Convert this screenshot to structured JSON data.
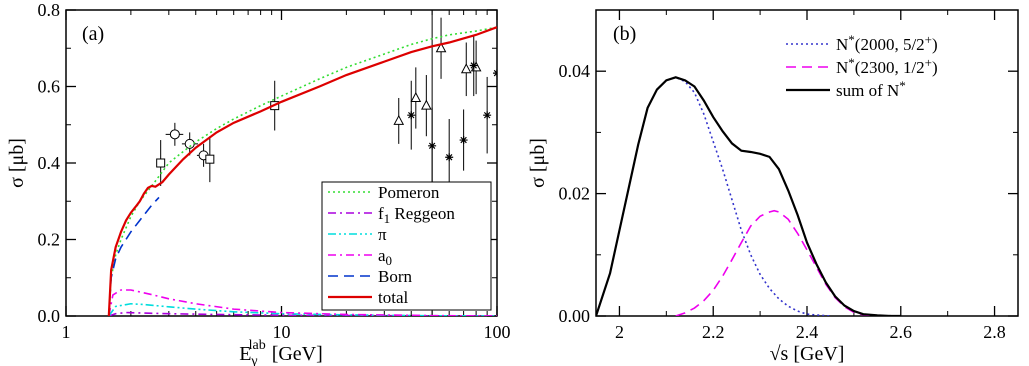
{
  "chart_data": [
    {
      "type": "line",
      "panel_label": "(a)",
      "xlabel": "E",
      "xlabel_sub": "γ",
      "xlabel_sup": "lab",
      "xlabel_unit": "[GeV]",
      "ylabel": "σ [μb]",
      "xscale": "log",
      "xlim": [
        1,
        100
      ],
      "ylim": [
        0,
        0.8
      ],
      "xticks": [
        1,
        10,
        100
      ],
      "xtick_labels": [
        "1",
        "10",
        "100"
      ],
      "yticks": [
        0,
        0.2,
        0.4,
        0.6,
        0.8
      ],
      "ytick_labels": [
        "0.0",
        "0.2",
        "0.4",
        "0.6",
        "0.8"
      ],
      "legend_position": "bottom-right",
      "vline_x": 50,
      "series": [
        {
          "name": "Pomeron",
          "color": "#33dd33",
          "dash": "dot",
          "x": [
            1.58,
            1.62,
            1.7,
            1.8,
            2.0,
            2.2,
            2.5,
            3.0,
            3.5,
            4.0,
            5.0,
            6.0,
            8.0,
            10.0,
            15.0,
            20.0,
            30.0,
            40.0,
            50.0,
            60.0,
            80.0,
            100.0
          ],
          "y": [
            0.0,
            0.1,
            0.16,
            0.2,
            0.26,
            0.3,
            0.34,
            0.4,
            0.43,
            0.455,
            0.49,
            0.515,
            0.55,
            0.575,
            0.62,
            0.65,
            0.685,
            0.71,
            0.725,
            0.735,
            0.745,
            0.755
          ]
        },
        {
          "name": "f₁ Reggeon",
          "label_main": "f",
          "label_sub": "1",
          "label_rest": " Reggeon",
          "color": "#aa00dd",
          "dash": "dashdot",
          "x": [
            1.58,
            1.7,
            1.9,
            2.2,
            3.0,
            5.0,
            10.0,
            30.0,
            100.0
          ],
          "y": [
            0.0,
            0.006,
            0.009,
            0.008,
            0.006,
            0.004,
            0.002,
            0.001,
            0.0
          ]
        },
        {
          "name": "π",
          "color": "#00dddd",
          "dash": "dashdotdot",
          "x": [
            1.58,
            1.7,
            2.0,
            2.3,
            3.0,
            4.0,
            6.0,
            10.0,
            20.0,
            40.0,
            100.0
          ],
          "y": [
            0.0,
            0.025,
            0.032,
            0.03,
            0.024,
            0.018,
            0.011,
            0.006,
            0.003,
            0.001,
            0.0
          ]
        },
        {
          "name": "a₀",
          "label_main": "a",
          "label_sub": "0",
          "label_rest": "",
          "color": "#ee00ee",
          "dash": "dashdot",
          "x": [
            1.58,
            1.65,
            1.8,
            2.0,
            2.5,
            3.0,
            4.0,
            6.0,
            10.0,
            20.0,
            50.0,
            100.0
          ],
          "y": [
            0.0,
            0.055,
            0.068,
            0.068,
            0.056,
            0.045,
            0.032,
            0.018,
            0.009,
            0.004,
            0.001,
            0.0
          ]
        },
        {
          "name": "Born",
          "color": "#0033cc",
          "dash": "dash",
          "x": [
            1.58,
            1.62,
            1.7,
            1.8,
            2.0,
            2.2,
            2.5,
            2.7
          ],
          "y": [
            0.0,
            0.1,
            0.15,
            0.18,
            0.22,
            0.25,
            0.29,
            0.31
          ]
        },
        {
          "name": "total",
          "color": "#dd0000",
          "dash": "solid",
          "x": [
            1.58,
            1.62,
            1.7,
            1.8,
            1.9,
            2.0,
            2.1,
            2.2,
            2.3,
            2.4,
            2.5,
            2.6,
            2.8,
            3.0,
            3.5,
            4.0,
            5.0,
            6.0,
            8.0,
            10.0,
            15.0,
            20.0,
            30.0,
            40.0,
            50.0,
            60.0,
            80.0,
            100.0
          ],
          "y": [
            0.0,
            0.12,
            0.18,
            0.22,
            0.25,
            0.27,
            0.285,
            0.3,
            0.32,
            0.335,
            0.34,
            0.338,
            0.35,
            0.37,
            0.41,
            0.44,
            0.48,
            0.505,
            0.535,
            0.56,
            0.6,
            0.63,
            0.665,
            0.69,
            0.705,
            0.715,
            0.735,
            0.755
          ]
        }
      ],
      "experimental_data": [
        {
          "marker": "circle",
          "points": [
            {
              "x": 3.2,
              "y": 0.475,
              "xerr": [
                2.9,
                3.5
              ],
              "yerr": 0.03
            },
            {
              "x": 3.75,
              "y": 0.45,
              "xerr": [
                3.45,
                4.1
              ],
              "yerr": 0.03
            },
            {
              "x": 4.35,
              "y": 0.42,
              "xerr": [
                4.05,
                4.65
              ],
              "yerr": 0.03
            }
          ]
        },
        {
          "marker": "square",
          "points": [
            {
              "x": 2.75,
              "y": 0.4,
              "xerr": [
                2.75,
                2.75
              ],
              "yerr": 0.06
            },
            {
              "x": 4.65,
              "y": 0.41,
              "xerr": [
                4.65,
                4.65
              ],
              "yerr": 0.06
            },
            {
              "x": 9.3,
              "y": 0.55,
              "xerr": [
                9.3,
                9.3
              ],
              "yerr": 0.065
            }
          ]
        },
        {
          "marker": "triangle",
          "points": [
            {
              "x": 35,
              "y": 0.51,
              "xerr": [
                35,
                35
              ],
              "yerr": 0.06
            },
            {
              "x": 42,
              "y": 0.57,
              "xerr": [
                42,
                42
              ],
              "yerr": 0.08
            },
            {
              "x": 47,
              "y": 0.55,
              "xerr": [
                47,
                47
              ],
              "yerr": 0.08
            },
            {
              "x": 55,
              "y": 0.7,
              "xerr": [
                55,
                55
              ],
              "yerr": 0.08
            },
            {
              "x": 72,
              "y": 0.645,
              "xerr": [
                72,
                72
              ],
              "yerr": 0.07
            },
            {
              "x": 80,
              "y": 0.65,
              "xerr": [
                80,
                80
              ],
              "yerr": 0.07
            }
          ]
        },
        {
          "marker": "star",
          "points": [
            {
              "x": 40,
              "y": 0.525,
              "xerr": [
                40,
                40
              ],
              "yerr": 0.09
            },
            {
              "x": 50,
              "y": 0.445,
              "xerr": [
                50,
                50
              ],
              "yerr": 0.1
            },
            {
              "x": 60,
              "y": 0.415,
              "xerr": [
                60,
                60
              ],
              "yerr": 0.1
            },
            {
              "x": 70,
              "y": 0.46,
              "xerr": [
                70,
                70
              ],
              "yerr": 0.08
            },
            {
              "x": 78,
              "y": 0.655,
              "xerr": [
                78,
                78
              ],
              "yerr": 0.08
            },
            {
              "x": 90,
              "y": 0.525,
              "xerr": [
                90,
                90
              ],
              "yerr": 0.1
            },
            {
              "x": 100,
              "y": 0.635,
              "xerr": [
                100,
                100
              ],
              "yerr": 0.08
            }
          ]
        }
      ]
    },
    {
      "type": "line",
      "panel_label": "(b)",
      "xlabel": "√s [GeV]",
      "ylabel": "σ [μb]",
      "xlim": [
        1.95,
        2.85
      ],
      "ylim": [
        0,
        0.05
      ],
      "xticks": [
        2.0,
        2.2,
        2.4,
        2.6,
        2.8
      ],
      "xtick_labels": [
        "2",
        "2.2",
        "2.4",
        "2.6",
        "2.8"
      ],
      "yticks": [
        0,
        0.02,
        0.04
      ],
      "ytick_labels": [
        "0.00",
        "0.02",
        "0.04"
      ],
      "legend_position": "top-right",
      "series": [
        {
          "name": "N*(2000, 5/2⁺)",
          "label_main": "N",
          "label_sup": "*",
          "label_rest": "(2000, 5/2",
          "label_sup2": "+",
          "label_end": ")",
          "color": "#3333cc",
          "dash": "dot",
          "x": [
            1.95,
            1.98,
            2.0,
            2.02,
            2.04,
            2.06,
            2.08,
            2.1,
            2.12,
            2.14,
            2.16,
            2.18,
            2.2,
            2.22,
            2.24,
            2.26,
            2.28,
            2.3,
            2.32,
            2.34,
            2.36,
            2.38,
            2.4,
            2.43,
            2.45
          ],
          "y": [
            0.0,
            0.007,
            0.014,
            0.021,
            0.028,
            0.034,
            0.037,
            0.0385,
            0.039,
            0.0383,
            0.0365,
            0.033,
            0.0285,
            0.024,
            0.019,
            0.014,
            0.01,
            0.0068,
            0.0045,
            0.0028,
            0.0016,
            0.0008,
            0.0003,
            0.0001,
            0.0
          ]
        },
        {
          "name": "N*(2300, 1/2⁺)",
          "label_main": "N",
          "label_sup": "*",
          "label_rest": "(2300, 1/2",
          "label_sup2": "+",
          "label_end": ")",
          "color": "#ee00ee",
          "dash": "dash",
          "x": [
            2.12,
            2.14,
            2.16,
            2.18,
            2.2,
            2.22,
            2.24,
            2.26,
            2.28,
            2.3,
            2.32,
            2.33,
            2.34,
            2.36,
            2.38,
            2.4,
            2.42,
            2.44,
            2.46,
            2.48,
            2.5,
            2.52,
            2.55
          ],
          "y": [
            0.0,
            0.0005,
            0.0013,
            0.0025,
            0.0042,
            0.0065,
            0.0092,
            0.012,
            0.0147,
            0.0163,
            0.017,
            0.0172,
            0.017,
            0.0158,
            0.0135,
            0.0108,
            0.008,
            0.0052,
            0.003,
            0.0015,
            0.0006,
            0.0002,
            0.0
          ]
        },
        {
          "name": "sum of N*",
          "label_main": "sum of N",
          "label_sup": "*",
          "color": "#000000",
          "dash": "solid",
          "x": [
            1.95,
            1.98,
            2.0,
            2.02,
            2.04,
            2.06,
            2.08,
            2.1,
            2.12,
            2.14,
            2.16,
            2.18,
            2.2,
            2.22,
            2.24,
            2.26,
            2.28,
            2.3,
            2.32,
            2.34,
            2.36,
            2.38,
            2.4,
            2.42,
            2.44,
            2.46,
            2.48,
            2.5,
            2.52,
            2.55,
            2.58,
            2.6
          ],
          "y": [
            0.0,
            0.007,
            0.014,
            0.021,
            0.028,
            0.034,
            0.037,
            0.0385,
            0.039,
            0.0385,
            0.0375,
            0.0352,
            0.0325,
            0.0302,
            0.0282,
            0.027,
            0.0268,
            0.0265,
            0.026,
            0.024,
            0.0205,
            0.0165,
            0.012,
            0.0085,
            0.0055,
            0.0032,
            0.0017,
            0.0008,
            0.0003,
            0.0001,
            0.0,
            0.0
          ]
        }
      ]
    }
  ]
}
